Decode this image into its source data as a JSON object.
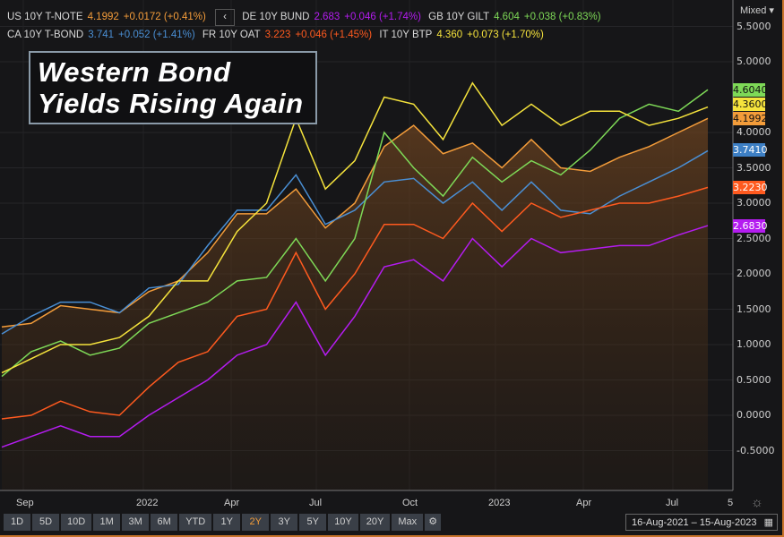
{
  "legend": {
    "row1": [
      {
        "name": "US 10Y T-NOTE",
        "value": "4.1992",
        "change": "+0.0172 (+0.41%)",
        "color": "#f39c3a"
      },
      {
        "name": "DE 10Y BUND",
        "value": "2.683",
        "change": "+0.046 (+1.74%)",
        "color": "#b41cf0"
      },
      {
        "name": "GB 10Y GILT",
        "value": "4.604",
        "change": "+0.038 (+0.83%)",
        "color": "#7ed957"
      }
    ],
    "row2": [
      {
        "name": "CA 10Y T-BOND",
        "value": "3.741",
        "change": "+0.052 (+1.41%)",
        "color": "#4a8fd4"
      },
      {
        "name": "FR 10Y OAT",
        "value": "3.223",
        "change": "+0.046 (+1.45%)",
        "color": "#ff5a1f"
      },
      {
        "name": "IT 10Y BTP",
        "value": "4.360",
        "change": "+0.073 (+1.70%)",
        "color": "#f5e33c"
      }
    ],
    "back_icon": "chevron-left-icon",
    "back_label": "‹"
  },
  "title": {
    "line1": "Western Bond",
    "line2": "Yields Rising Again"
  },
  "scale_mode": "Mixed ▾",
  "badges": [
    {
      "text": "4.6040",
      "color": "#7ed957"
    },
    {
      "text": "4.3600",
      "color": "#f5e33c"
    },
    {
      "text": "4.1992",
      "color": "#f39c3a"
    },
    {
      "text": "3.7410",
      "color": "#3d7fc4"
    },
    {
      "text": "3.2230",
      "color": "#ff5a1f"
    },
    {
      "text": "2.6830",
      "color": "#b41cf0"
    }
  ],
  "chart_data": {
    "type": "line",
    "x": [
      "Aug-2021",
      "Sep-2021",
      "Oct-2021",
      "Nov-2021",
      "Dec-2021",
      "Jan-2022",
      "Feb-2022",
      "Mar-2022",
      "Apr-2022",
      "May-2022",
      "Jun-2022",
      "Jul-2022",
      "Aug-2022",
      "Sep-2022",
      "Oct-2022",
      "Nov-2022",
      "Dec-2022",
      "Jan-2023",
      "Feb-2023",
      "Mar-2023",
      "Apr-2023",
      "May-2023",
      "Jun-2023",
      "Jul-2023",
      "Aug-2023"
    ],
    "series": [
      {
        "name": "US 10Y T-NOTE",
        "color": "#f39c3a",
        "values": [
          1.25,
          1.3,
          1.55,
          1.5,
          1.45,
          1.75,
          1.9,
          2.3,
          2.85,
          2.85,
          3.2,
          2.65,
          3.0,
          3.8,
          4.1,
          3.7,
          3.85,
          3.5,
          3.9,
          3.5,
          3.45,
          3.65,
          3.8,
          4.0,
          4.1992
        ]
      },
      {
        "name": "CA 10Y T-BOND",
        "color": "#4a8fd4",
        "values": [
          1.15,
          1.4,
          1.6,
          1.6,
          1.45,
          1.8,
          1.85,
          2.4,
          2.9,
          2.9,
          3.4,
          2.7,
          2.9,
          3.3,
          3.35,
          3.0,
          3.3,
          2.9,
          3.3,
          2.9,
          2.85,
          3.1,
          3.3,
          3.5,
          3.741
        ]
      },
      {
        "name": "GB 10Y GILT",
        "color": "#7ed957",
        "values": [
          0.55,
          0.9,
          1.05,
          0.85,
          0.95,
          1.3,
          1.45,
          1.6,
          1.9,
          1.95,
          2.5,
          1.9,
          2.5,
          4.0,
          3.5,
          3.1,
          3.65,
          3.3,
          3.6,
          3.4,
          3.75,
          4.2,
          4.4,
          4.3,
          4.604
        ]
      },
      {
        "name": "IT 10Y BTP",
        "color": "#f5e33c",
        "values": [
          0.6,
          0.8,
          1.0,
          1.0,
          1.1,
          1.4,
          1.9,
          1.9,
          2.6,
          3.0,
          4.2,
          3.2,
          3.6,
          4.5,
          4.4,
          3.9,
          4.7,
          4.1,
          4.4,
          4.1,
          4.3,
          4.3,
          4.1,
          4.2,
          4.36
        ]
      },
      {
        "name": "FR 10Y OAT",
        "color": "#ff5a1f",
        "values": [
          -0.05,
          0.0,
          0.2,
          0.05,
          0.0,
          0.4,
          0.75,
          0.9,
          1.4,
          1.5,
          2.3,
          1.5,
          2.0,
          2.7,
          2.7,
          2.5,
          3.0,
          2.6,
          3.0,
          2.8,
          2.9,
          3.0,
          3.0,
          3.1,
          3.223
        ]
      },
      {
        "name": "DE 10Y BUND",
        "color": "#b41cf0",
        "values": [
          -0.45,
          -0.3,
          -0.15,
          -0.3,
          -0.3,
          0.0,
          0.25,
          0.5,
          0.85,
          1.0,
          1.6,
          0.85,
          1.4,
          2.1,
          2.2,
          1.9,
          2.5,
          2.1,
          2.5,
          2.3,
          2.35,
          2.4,
          2.4,
          2.55,
          2.683
        ]
      }
    ],
    "y_ticks": [
      "5.5000",
      "5.0000",
      "4.0000",
      "3.5000",
      "3.0000",
      "2.5000",
      "2.0000",
      "1.5000",
      "1.0000",
      "0.5000",
      "0.0000",
      "-0.5000"
    ],
    "x_ticks": [
      "Sep",
      "2022",
      "Apr",
      "Jul",
      "Oct",
      "2023",
      "Apr",
      "Jul",
      "5"
    ],
    "ylim": [
      -0.8,
      5.6
    ],
    "grid": true,
    "area_fill_series": "US 10Y T-NOTE"
  },
  "toolbar": {
    "ranges": [
      "1D",
      "5D",
      "10D",
      "1M",
      "3M",
      "6M",
      "YTD",
      "1Y",
      "2Y",
      "3Y",
      "5Y",
      "10Y",
      "20Y",
      "Max"
    ],
    "active": "2Y",
    "settings_icon": "gear-icon"
  },
  "date_range": "16-Aug-2021  –  15-Aug-2023",
  "calendar_icon": "calendar-icon",
  "crosshair_icon": "sun-settings-icon"
}
